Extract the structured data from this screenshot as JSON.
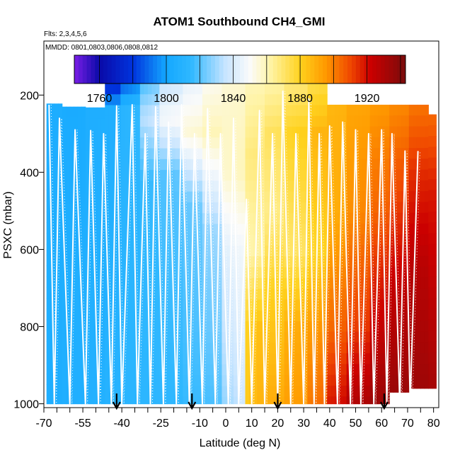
{
  "chart_data": {
    "type": "heatmap",
    "title": "ATOM1 Southbound CH4_GMI",
    "subtitle_flights": "Flts: 2,3,4,5,6",
    "subtitle_dates": "MMDD: 0801,0803,0806,0808,0812",
    "xlabel": "Latitude (deg N)",
    "ylabel": "PSXC (mbar)",
    "xlim": [
      -70,
      82
    ],
    "ylim": [
      1010,
      60
    ],
    "x_ticks": [
      -70,
      -55,
      -40,
      -25,
      -10,
      0,
      10,
      20,
      30,
      40,
      50,
      60,
      70,
      80
    ],
    "y_ticks": [
      200,
      400,
      600,
      800,
      1000
    ],
    "colorbar": {
      "min": 1745,
      "max": 1943,
      "ticks": [
        1760,
        1800,
        1840,
        1880,
        1920
      ],
      "stops": [
        {
          "v": 1745,
          "c": "#7a1ee6"
        },
        {
          "v": 1760,
          "c": "#0a0aa8"
        },
        {
          "v": 1780,
          "c": "#0033dd"
        },
        {
          "v": 1800,
          "c": "#14a8ff"
        },
        {
          "v": 1815,
          "c": "#30b8ff"
        },
        {
          "v": 1835,
          "c": "#c6e4ff"
        },
        {
          "v": 1850,
          "c": "#fbfbfa"
        },
        {
          "v": 1862,
          "c": "#fff4a8"
        },
        {
          "v": 1880,
          "c": "#ffd21e"
        },
        {
          "v": 1895,
          "c": "#ff9a00"
        },
        {
          "v": 1910,
          "c": "#f04800"
        },
        {
          "v": 1922,
          "c": "#cc0000"
        },
        {
          "v": 1943,
          "c": "#7a0c0c"
        }
      ]
    },
    "columns": [
      {
        "lat": -68,
        "top": 222,
        "bottom": 1000,
        "values": [
          [
            222,
            1805
          ],
          [
            1000,
            1806
          ]
        ]
      },
      {
        "lat": -60,
        "top": 230,
        "bottom": 1000,
        "values": [
          [
            230,
            1803
          ],
          [
            600,
            1806
          ],
          [
            1000,
            1807
          ]
        ]
      },
      {
        "lat": -50,
        "top": 232,
        "bottom": 1000,
        "values": [
          [
            232,
            1806
          ],
          [
            1000,
            1808
          ]
        ]
      },
      {
        "lat": -44,
        "top": 170,
        "bottom": 1000,
        "values": [
          [
            170,
            1768
          ],
          [
            240,
            1806
          ],
          [
            1000,
            1810
          ]
        ]
      },
      {
        "lat": -38,
        "top": 170,
        "bottom": 1000,
        "values": [
          [
            170,
            1788
          ],
          [
            230,
            1812
          ],
          [
            1000,
            1812
          ]
        ]
      },
      {
        "lat": -30,
        "top": 170,
        "bottom": 1000,
        "values": [
          [
            170,
            1822
          ],
          [
            260,
            1836
          ],
          [
            420,
            1816
          ],
          [
            1000,
            1813
          ]
        ]
      },
      {
        "lat": -22,
        "top": 170,
        "bottom": 1000,
        "values": [
          [
            170,
            1838
          ],
          [
            260,
            1850
          ],
          [
            400,
            1820
          ],
          [
            1000,
            1814
          ]
        ]
      },
      {
        "lat": -14,
        "top": 170,
        "bottom": 1000,
        "values": [
          [
            170,
            1845
          ],
          [
            300,
            1856
          ],
          [
            480,
            1822
          ],
          [
            1000,
            1816
          ]
        ]
      },
      {
        "lat": -6,
        "top": 170,
        "bottom": 1000,
        "values": [
          [
            170,
            1852
          ],
          [
            300,
            1860
          ],
          [
            550,
            1828
          ],
          [
            1000,
            1818
          ]
        ]
      },
      {
        "lat": 2,
        "top": 170,
        "bottom": 1000,
        "values": [
          [
            170,
            1856
          ],
          [
            400,
            1858
          ],
          [
            600,
            1845
          ],
          [
            1000,
            1830
          ]
        ]
      },
      {
        "lat": 10,
        "top": 170,
        "bottom": 1000,
        "values": [
          [
            170,
            1860
          ],
          [
            350,
            1868
          ],
          [
            600,
            1862
          ],
          [
            800,
            1885
          ],
          [
            1000,
            1888
          ]
        ]
      },
      {
        "lat": 18,
        "top": 170,
        "bottom": 1000,
        "values": [
          [
            170,
            1862
          ],
          [
            300,
            1872
          ],
          [
            500,
            1866
          ],
          [
            700,
            1880
          ],
          [
            1000,
            1890
          ]
        ]
      },
      {
        "lat": 26,
        "top": 170,
        "bottom": 1000,
        "values": [
          [
            170,
            1868
          ],
          [
            300,
            1880
          ],
          [
            600,
            1870
          ],
          [
            800,
            1890
          ],
          [
            1000,
            1894
          ]
        ]
      },
      {
        "lat": 34,
        "top": 170,
        "bottom": 1000,
        "values": [
          [
            170,
            1874
          ],
          [
            300,
            1888
          ],
          [
            600,
            1878
          ],
          [
            800,
            1895
          ],
          [
            1000,
            1902
          ]
        ]
      },
      {
        "lat": 42,
        "top": 225,
        "bottom": 1000,
        "values": [
          [
            225,
            1888
          ],
          [
            500,
            1890
          ],
          [
            800,
            1905
          ],
          [
            1000,
            1920
          ]
        ]
      },
      {
        "lat": 50,
        "top": 225,
        "bottom": 1000,
        "values": [
          [
            225,
            1892
          ],
          [
            500,
            1898
          ],
          [
            800,
            1912
          ],
          [
            1000,
            1930
          ]
        ]
      },
      {
        "lat": 58,
        "top": 225,
        "bottom": 1000,
        "values": [
          [
            225,
            1895
          ],
          [
            500,
            1905
          ],
          [
            700,
            1918
          ],
          [
            1000,
            1935
          ]
        ]
      },
      {
        "lat": 66,
        "top": 225,
        "bottom": 970,
        "values": [
          [
            225,
            1898
          ],
          [
            450,
            1910
          ],
          [
            700,
            1925
          ],
          [
            970,
            1935
          ]
        ]
      },
      {
        "lat": 74,
        "top": 225,
        "bottom": 960,
        "values": [
          [
            225,
            1902
          ],
          [
            400,
            1915
          ],
          [
            650,
            1928
          ],
          [
            960,
            1934
          ]
        ]
      },
      {
        "lat": 79,
        "top": 250,
        "bottom": 960,
        "values": [
          [
            250,
            1904
          ],
          [
            450,
            1918
          ],
          [
            960,
            1932
          ]
        ]
      }
    ],
    "flight_track_lat": [
      -68,
      -66,
      -64,
      -60,
      -58,
      -54,
      -52,
      -49,
      -47,
      -44,
      -42,
      -40,
      -36,
      -34,
      -31,
      -29,
      -27,
      -24,
      -22,
      -19,
      -17,
      -14,
      -12,
      -9,
      -7,
      -4,
      -2,
      1,
      3,
      5,
      8,
      10,
      13,
      15,
      18,
      20,
      22,
      25,
      27,
      30,
      32,
      34,
      36,
      38,
      40,
      43,
      45,
      48,
      50,
      52,
      55,
      57,
      60,
      62,
      64,
      67,
      69,
      71,
      74,
      76,
      78
    ],
    "flight_track_p": [
      225,
      1000,
      260,
      1000,
      290,
      1000,
      292,
      1000,
      300,
      1000,
      228,
      1000,
      225,
      1000,
      300,
      1000,
      230,
      1000,
      270,
      1000,
      225,
      1000,
      300,
      1000,
      235,
      1000,
      300,
      1000,
      260,
      1000,
      470,
      1000,
      240,
      1000,
      300,
      1000,
      190,
      1000,
      300,
      1000,
      210,
      1000,
      300,
      1000,
      280,
      1000,
      270,
      1000,
      290,
      1000,
      300,
      1000,
      290,
      1000,
      300,
      1000,
      345,
      1000,
      345
    ],
    "arrows_lat": [
      -42,
      -13,
      20,
      61
    ]
  }
}
